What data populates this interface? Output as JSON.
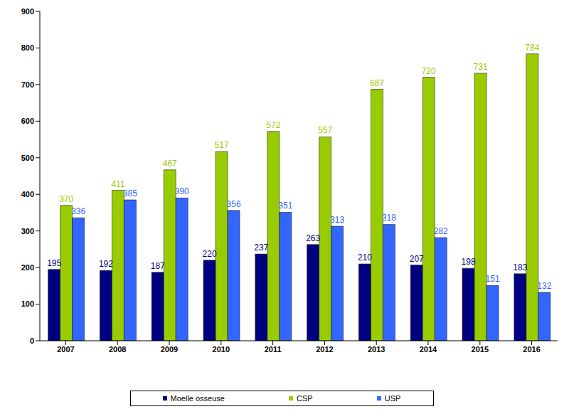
{
  "chart_data": {
    "type": "bar",
    "categories": [
      "2007",
      "2008",
      "2009",
      "2010",
      "2011",
      "2012",
      "2013",
      "2014",
      "2015",
      "2016"
    ],
    "series": [
      {
        "name": "Moelle osseuse",
        "color": "#000080",
        "values": [
          195,
          192,
          187,
          220,
          237,
          263,
          210,
          207,
          198,
          183
        ]
      },
      {
        "name": "CSP",
        "color": "#99cc00",
        "values": [
          370,
          411,
          467,
          517,
          572,
          557,
          687,
          720,
          731,
          784
        ]
      },
      {
        "name": "USP",
        "color": "#3366ff",
        "values": [
          336,
          385,
          390,
          356,
          351,
          313,
          318,
          282,
          151,
          132
        ]
      }
    ],
    "ylim": [
      0,
      900
    ],
    "yticks": [
      0,
      100,
      200,
      300,
      400,
      500,
      600,
      700,
      800,
      900
    ],
    "grid": false,
    "legend": "bottom",
    "data_labels": true
  }
}
